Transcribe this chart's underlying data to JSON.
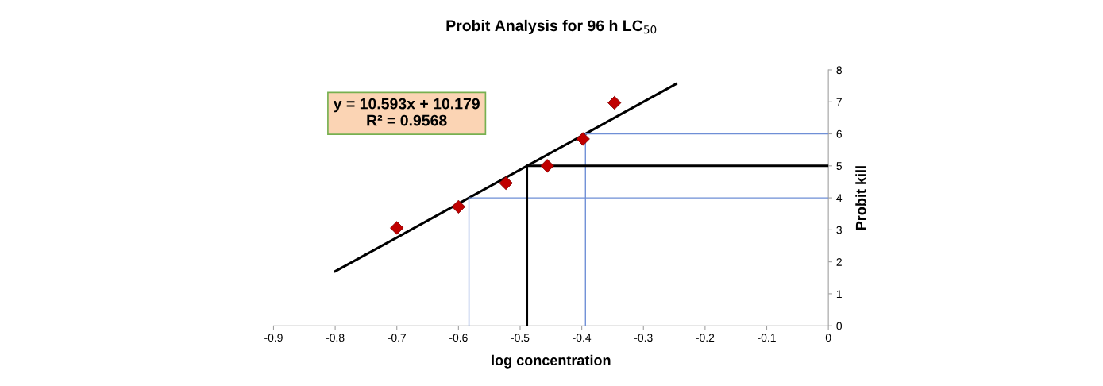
{
  "chart_data": {
    "type": "scatter",
    "title": "Probit Analysis for 96 h LC$_{50}$",
    "xlabel": "log concentration",
    "ylabel": "Probit kill",
    "x": [
      -0.7,
      -0.6,
      -0.523,
      -0.456,
      -0.398,
      -0.347
    ],
    "series": [
      {
        "color": "#c00000",
        "marker": "diamond",
        "values": [
          3.06,
          3.72,
          4.46,
          5.0,
          5.84,
          6.97
        ]
      },
      {
        "type": "line",
        "color": "#000000",
        "x": [
          -0.8,
          -0.247
        ],
        "values": [
          1.7,
          7.56
        ]
      },
      {
        "type": "line",
        "color": "#6f8fd6",
        "x": [
          -0.583,
          -0.583,
          0
        ],
        "values": [
          0,
          4.0,
          4.0
        ]
      },
      {
        "type": "line",
        "color": "#6f8fd6",
        "x": [
          -0.394,
          -0.394,
          0
        ],
        "values": [
          0,
          6.0,
          6.0
        ]
      },
      {
        "type": "line",
        "color": "#000000",
        "x": [
          -0.489,
          -0.489,
          0
        ],
        "values": [
          0,
          5.0,
          5.0
        ]
      }
    ],
    "annotations": [
      "y = 10.593x + 10.179\nR² = 0.9568"
    ],
    "xlim": [
      -0.9,
      0
    ],
    "xticks": [
      -0.9,
      -0.8,
      -0.7,
      -0.6,
      -0.5,
      -0.4,
      -0.3,
      -0.2,
      -0.1,
      0
    ],
    "ylim": [
      0,
      8
    ],
    "yticks": [
      0,
      1,
      2,
      3,
      4,
      5,
      6,
      7,
      8
    ],
    "grid": false,
    "legend": false
  }
}
